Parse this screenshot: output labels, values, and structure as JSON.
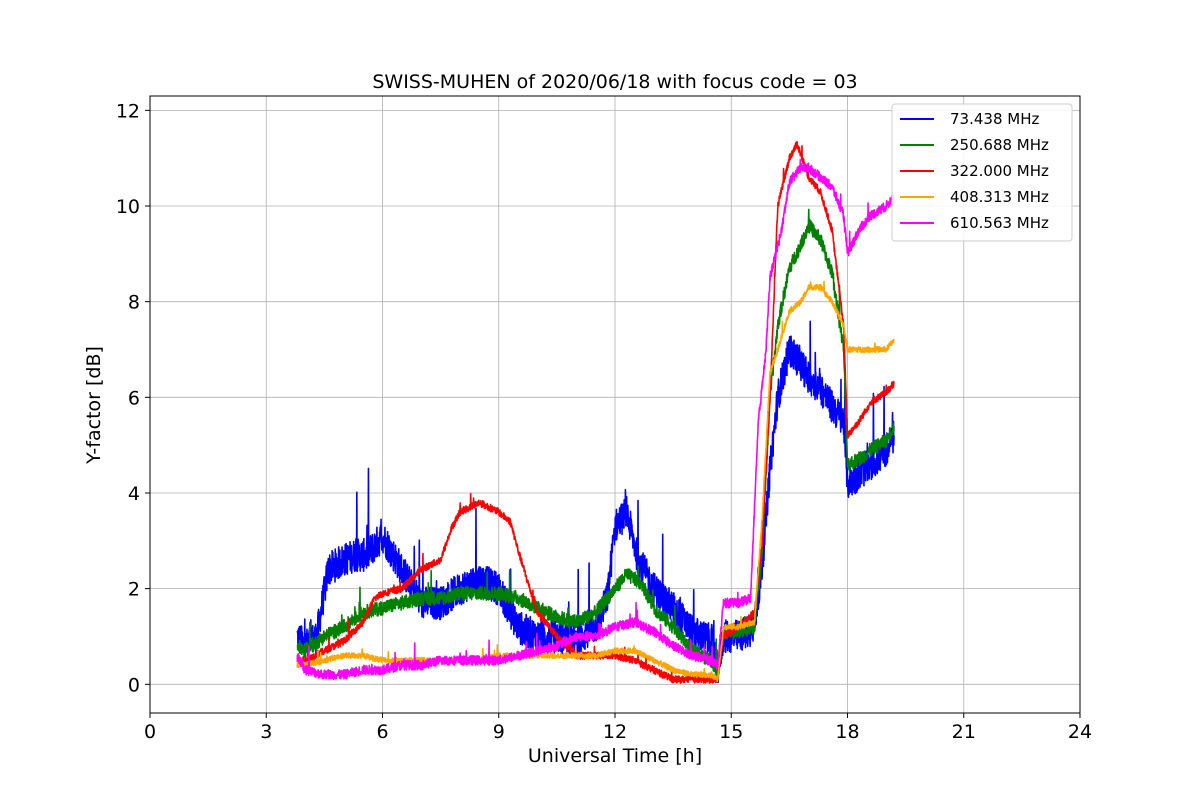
{
  "chart_data": {
    "type": "line",
    "title": "SWISS-MUHEN of 2020/06/18 with focus code = 03",
    "xlabel": "Universal Time [h]",
    "ylabel": "Y-factor [dB]",
    "xlim": [
      0,
      24
    ],
    "ylim": [
      -0.6,
      12.3
    ],
    "xticks": [
      0,
      3,
      6,
      9,
      12,
      15,
      18,
      21,
      24
    ],
    "yticks": [
      0,
      2,
      4,
      6,
      8,
      10,
      12
    ],
    "grid": true,
    "legend_position": "top-right",
    "series": [
      {
        "name": " 73.438 MHz",
        "color": "#0000ff",
        "noise": 0.7,
        "x": [
          3.8,
          4.0,
          4.3,
          4.6,
          5.0,
          5.3,
          5.6,
          6.0,
          6.5,
          7.0,
          7.5,
          8.0,
          8.5,
          9.0,
          9.5,
          10.0,
          10.5,
          11.0,
          11.5,
          11.8,
          12.0,
          12.3,
          12.6,
          13.0,
          13.5,
          14.0,
          14.5,
          14.65,
          14.8,
          15.2,
          15.6,
          15.8,
          16.0,
          16.2,
          16.5,
          16.8,
          17.0,
          17.3,
          17.6,
          17.9,
          18.0,
          18.3,
          18.6,
          19.0,
          19.2
        ],
        "y": [
          1.0,
          0.8,
          1.0,
          2.4,
          2.6,
          2.7,
          2.7,
          3.1,
          2.4,
          1.7,
          1.7,
          2.0,
          2.2,
          2.0,
          1.2,
          1.0,
          1.0,
          0.9,
          1.2,
          1.8,
          3.3,
          3.6,
          2.6,
          2.0,
          1.6,
          1.1,
          0.9,
          0.3,
          1.0,
          1.0,
          1.2,
          2.5,
          4.5,
          6.0,
          7.0,
          6.7,
          6.4,
          6.2,
          5.8,
          5.5,
          4.2,
          4.4,
          4.6,
          4.9,
          5.2
        ]
      },
      {
        "name": "250.688 MHz",
        "color": "#008000",
        "noise": 0.3,
        "x": [
          3.8,
          4.0,
          4.5,
          5.0,
          5.5,
          6.0,
          6.5,
          7.0,
          7.5,
          8.0,
          8.5,
          9.0,
          9.5,
          10.0,
          10.5,
          11.0,
          11.5,
          12.0,
          12.3,
          12.7,
          13.0,
          13.5,
          14.0,
          14.5,
          14.65,
          14.8,
          15.2,
          15.6,
          15.8,
          16.0,
          16.2,
          16.5,
          16.8,
          17.0,
          17.3,
          17.6,
          17.9,
          18.0,
          18.3,
          18.6,
          19.0,
          19.2
        ],
        "y": [
          0.8,
          0.7,
          1.0,
          1.2,
          1.5,
          1.6,
          1.7,
          1.8,
          1.8,
          1.9,
          1.9,
          1.9,
          1.8,
          1.6,
          1.4,
          1.3,
          1.5,
          2.0,
          2.3,
          2.1,
          1.6,
          1.2,
          0.7,
          0.5,
          0.2,
          1.1,
          1.1,
          1.2,
          2.8,
          6.0,
          7.5,
          8.7,
          9.2,
          9.6,
          9.3,
          8.6,
          7.0,
          4.6,
          4.7,
          4.9,
          5.1,
          5.4
        ]
      },
      {
        "name": "322.000 MHz",
        "color": "#ff0000",
        "noise": 0.15,
        "x": [
          3.8,
          4.0,
          4.5,
          5.0,
          5.5,
          5.8,
          6.0,
          6.5,
          7.0,
          7.5,
          7.8,
          8.0,
          8.5,
          9.0,
          9.3,
          9.5,
          9.8,
          10.0,
          10.5,
          11.0,
          11.5,
          12.0,
          12.5,
          13.0,
          13.5,
          14.0,
          14.5,
          14.65,
          14.8,
          15.2,
          15.6,
          15.8,
          16.0,
          16.2,
          16.5,
          16.7,
          17.0,
          17.3,
          17.6,
          17.9,
          18.0,
          18.3,
          18.6,
          19.0,
          19.2
        ],
        "y": [
          0.5,
          0.5,
          0.7,
          0.9,
          1.3,
          1.8,
          1.9,
          2.0,
          2.4,
          2.6,
          3.3,
          3.6,
          3.8,
          3.6,
          3.4,
          2.8,
          2.0,
          1.5,
          1.0,
          0.6,
          0.6,
          0.6,
          0.5,
          0.3,
          0.1,
          0.1,
          0.1,
          0.1,
          1.0,
          1.2,
          1.5,
          3.0,
          6.0,
          10.0,
          11.0,
          11.3,
          10.6,
          10.3,
          9.5,
          7.5,
          5.2,
          5.5,
          5.9,
          6.1,
          6.3
        ]
      },
      {
        "name": "408.313 MHz",
        "color": "#ffa500",
        "noise": 0.12,
        "x": [
          3.8,
          4.0,
          4.5,
          5.0,
          5.5,
          6.0,
          6.5,
          7.0,
          7.5,
          8.0,
          8.5,
          9.0,
          9.5,
          10.0,
          10.5,
          11.0,
          11.5,
          12.0,
          12.5,
          13.0,
          13.5,
          14.0,
          14.5,
          14.65,
          14.8,
          15.2,
          15.6,
          15.8,
          16.0,
          16.2,
          16.5,
          16.8,
          17.0,
          17.3,
          17.6,
          17.9,
          18.0,
          18.3,
          18.6,
          19.0,
          19.2
        ],
        "y": [
          0.4,
          0.4,
          0.5,
          0.6,
          0.6,
          0.5,
          0.5,
          0.5,
          0.5,
          0.5,
          0.5,
          0.6,
          0.6,
          0.6,
          0.6,
          0.6,
          0.6,
          0.7,
          0.7,
          0.5,
          0.3,
          0.2,
          0.2,
          0.1,
          1.2,
          1.2,
          1.3,
          3.5,
          6.5,
          7.0,
          7.8,
          8.0,
          8.3,
          8.3,
          8.0,
          7.5,
          7.0,
          7.0,
          7.0,
          7.0,
          7.2
        ]
      },
      {
        "name": "610.563 MHz",
        "color": "#ff00ff",
        "noise": 0.2,
        "x": [
          3.8,
          4.0,
          4.5,
          5.0,
          5.5,
          6.0,
          6.5,
          7.0,
          7.5,
          8.0,
          8.5,
          9.0,
          9.5,
          10.0,
          10.5,
          11.0,
          11.5,
          12.0,
          12.5,
          13.0,
          13.5,
          14.0,
          14.5,
          14.65,
          14.8,
          15.2,
          15.5,
          15.7,
          15.9,
          16.0,
          16.3,
          16.5,
          16.8,
          17.0,
          17.3,
          17.6,
          17.9,
          18.0,
          18.3,
          18.6,
          19.0,
          19.2
        ],
        "y": [
          0.6,
          0.3,
          0.2,
          0.2,
          0.3,
          0.3,
          0.4,
          0.4,
          0.5,
          0.5,
          0.5,
          0.5,
          0.6,
          0.7,
          0.8,
          1.0,
          1.0,
          1.2,
          1.3,
          1.1,
          0.8,
          0.6,
          0.5,
          0.4,
          1.7,
          1.7,
          1.8,
          5.5,
          7.0,
          8.5,
          9.5,
          10.5,
          10.8,
          10.8,
          10.6,
          10.4,
          9.8,
          9.0,
          9.5,
          9.8,
          10.0,
          10.2
        ]
      }
    ]
  }
}
